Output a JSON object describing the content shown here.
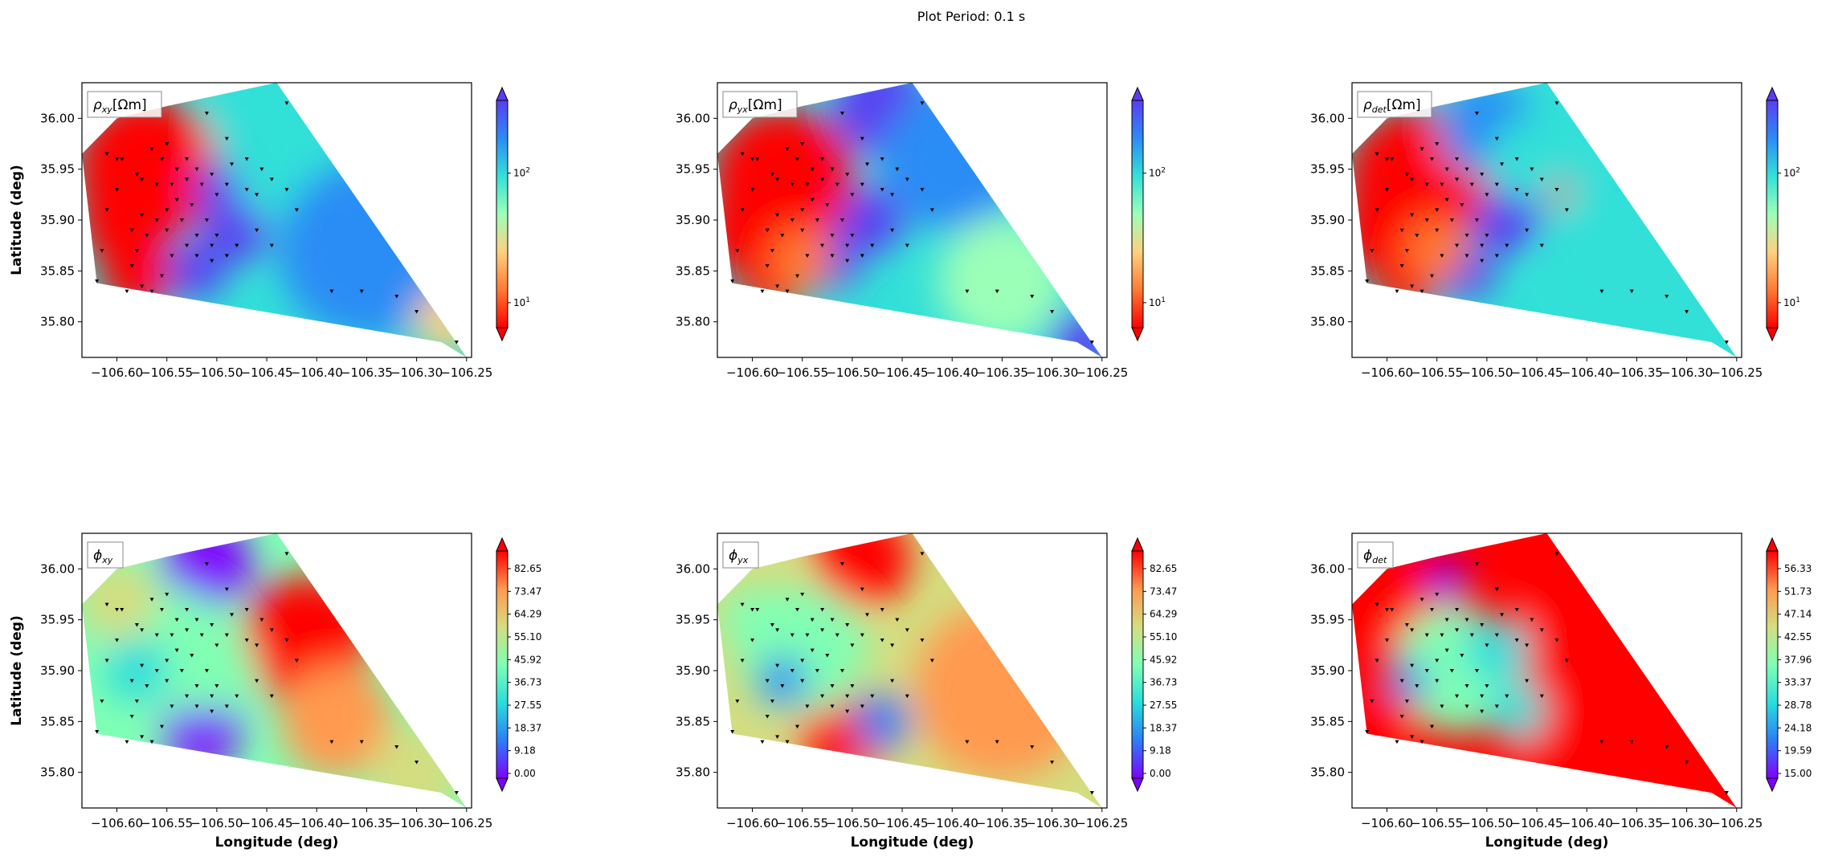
{
  "suptitle": "Plot Period: 0.1 s",
  "axis_labels": {
    "ylabel": "Latitude (deg)",
    "xlabel": "Longitude (deg)"
  },
  "x_ticks": [
    "−106.60",
    "−106.55",
    "−106.50",
    "−106.45",
    "−106.40",
    "−106.35",
    "−106.30",
    "−106.25"
  ],
  "y_ticks": [
    "36.00",
    "35.95",
    "35.90",
    "35.85",
    "35.80"
  ],
  "chart_data": [
    {
      "type": "heatmap",
      "label_sym": "ρ",
      "label_sub": "xy",
      "label_unit": "[Ωm]",
      "colorbar": {
        "scale": "log",
        "ticks": [
          {
            "base": "10",
            "exp": "1",
            "frac": 0.11
          },
          {
            "base": "10",
            "exp": "2",
            "frac": 0.68
          }
        ],
        "extend": "both",
        "colors": [
          "#ff0000",
          "#ff7a33",
          "#ffd080",
          "#9cffb8",
          "#33e0d8",
          "#2b8cf5",
          "#5a3df2"
        ]
      },
      "xlim": [
        -106.635,
        -106.245
      ],
      "ylim": [
        35.765,
        36.035
      ]
    },
    {
      "type": "heatmap",
      "label_sym": "ρ",
      "label_sub": "yx",
      "label_unit": "[Ωm]",
      "colorbar": {
        "scale": "log",
        "ticks": [
          {
            "base": "10",
            "exp": "1",
            "frac": 0.11
          },
          {
            "base": "10",
            "exp": "2",
            "frac": 0.68
          }
        ],
        "extend": "both",
        "colors": [
          "#ff0000",
          "#ff7a33",
          "#ffd080",
          "#9cffb8",
          "#33e0d8",
          "#2b8cf5",
          "#5a3df2"
        ]
      },
      "xlim": [
        -106.635,
        -106.245
      ],
      "ylim": [
        35.765,
        36.035
      ]
    },
    {
      "type": "heatmap",
      "label_sym": "ρ",
      "label_sub": "det",
      "label_unit": "[Ωm]",
      "colorbar": {
        "scale": "log",
        "ticks": [
          {
            "base": "10",
            "exp": "1",
            "frac": 0.11
          },
          {
            "base": "10",
            "exp": "2",
            "frac": 0.68
          }
        ],
        "extend": "both",
        "colors": [
          "#ff0000",
          "#ff7a33",
          "#ffd080",
          "#9cffb8",
          "#33e0d8",
          "#2b8cf5",
          "#5a3df2"
        ]
      },
      "xlim": [
        -106.635,
        -106.245
      ],
      "ylim": [
        35.765,
        36.035
      ]
    },
    {
      "type": "heatmap",
      "label_sym": "ϕ",
      "label_sub": "xy",
      "label_unit": "",
      "colorbar": {
        "scale": "linear",
        "ticks": [
          "0.00",
          "9.18",
          "18.37",
          "27.55",
          "36.73",
          "45.92",
          "55.10",
          "64.29",
          "73.47",
          "82.65"
        ],
        "extend": "both",
        "colors": [
          "#7f00ff",
          "#2c7ef7",
          "#2adddd",
          "#80ffb4",
          "#d4dd80",
          "#ff9a50",
          "#ff0000"
        ]
      },
      "xlim": [
        -106.635,
        -106.245
      ],
      "ylim": [
        35.765,
        36.035
      ]
    },
    {
      "type": "heatmap",
      "label_sym": "ϕ",
      "label_sub": "yx",
      "label_unit": "",
      "colorbar": {
        "scale": "linear",
        "ticks": [
          "0.00",
          "9.18",
          "18.37",
          "27.55",
          "36.73",
          "45.92",
          "55.10",
          "64.29",
          "73.47",
          "82.65"
        ],
        "extend": "both",
        "colors": [
          "#7f00ff",
          "#2c7ef7",
          "#2adddd",
          "#80ffb4",
          "#d4dd80",
          "#ff9a50",
          "#ff0000"
        ]
      },
      "xlim": [
        -106.635,
        -106.245
      ],
      "ylim": [
        35.765,
        36.035
      ]
    },
    {
      "type": "heatmap",
      "label_sym": "ϕ",
      "label_sub": "det",
      "label_unit": "",
      "colorbar": {
        "scale": "linear",
        "ticks": [
          "15.00",
          "19.59",
          "24.18",
          "28.78",
          "33.37",
          "37.96",
          "42.55",
          "47.14",
          "51.73",
          "56.33"
        ],
        "extend": "both",
        "colors": [
          "#7f00ff",
          "#2c7ef7",
          "#2adddd",
          "#80ffb4",
          "#d4dd80",
          "#ff9a50",
          "#ff0000"
        ]
      },
      "xlim": [
        -106.635,
        -106.245
      ],
      "ylim": [
        35.765,
        36.035
      ]
    }
  ],
  "stations": [
    [
      -106.61,
      35.965
    ],
    [
      -106.6,
      35.96
    ],
    [
      -106.595,
      35.96
    ],
    [
      -106.6,
      35.93
    ],
    [
      -106.61,
      35.91
    ],
    [
      -106.615,
      35.87
    ],
    [
      -106.62,
      35.84
    ],
    [
      -106.59,
      35.83
    ],
    [
      -106.575,
      35.835
    ],
    [
      -106.565,
      35.83
    ],
    [
      -106.58,
      35.87
    ],
    [
      -106.57,
      35.885
    ],
    [
      -106.585,
      35.89
    ],
    [
      -106.56,
      35.9
    ],
    [
      -106.575,
      35.905
    ],
    [
      -106.58,
      35.945
    ],
    [
      -106.565,
      35.97
    ],
    [
      -106.55,
      35.975
    ],
    [
      -106.555,
      35.96
    ],
    [
      -106.575,
      35.94
    ],
    [
      -106.56,
      35.935
    ],
    [
      -106.545,
      35.935
    ],
    [
      -106.54,
      35.92
    ],
    [
      -106.55,
      35.91
    ],
    [
      -106.535,
      35.9
    ],
    [
      -106.525,
      35.915
    ],
    [
      -106.51,
      35.9
    ],
    [
      -106.52,
      35.885
    ],
    [
      -106.5,
      35.885
    ],
    [
      -106.53,
      35.875
    ],
    [
      -106.545,
      35.865
    ],
    [
      -106.52,
      35.865
    ],
    [
      -106.505,
      35.86
    ],
    [
      -106.49,
      35.865
    ],
    [
      -106.48,
      35.875
    ],
    [
      -106.46,
      35.89
    ],
    [
      -106.47,
      35.93
    ],
    [
      -106.49,
      35.935
    ],
    [
      -106.505,
      35.945
    ],
    [
      -106.485,
      35.955
    ],
    [
      -106.47,
      35.96
    ],
    [
      -106.455,
      35.95
    ],
    [
      -106.46,
      35.925
    ],
    [
      -106.445,
      35.94
    ],
    [
      -106.43,
      35.93
    ],
    [
      -106.42,
      35.91
    ],
    [
      -106.445,
      35.875
    ],
    [
      -106.49,
      35.98
    ],
    [
      -106.51,
      36.005
    ],
    [
      -106.54,
      35.95
    ],
    [
      -106.53,
      35.94
    ],
    [
      -106.515,
      35.935
    ],
    [
      -106.5,
      35.925
    ],
    [
      -106.52,
      35.95
    ],
    [
      -106.53,
      35.96
    ],
    [
      -106.55,
      35.89
    ],
    [
      -106.505,
      35.875
    ],
    [
      -106.555,
      35.845
    ],
    [
      -106.585,
      35.855
    ],
    [
      -106.43,
      36.015
    ],
    [
      -106.385,
      35.83
    ],
    [
      -106.355,
      35.83
    ],
    [
      -106.32,
      35.825
    ],
    [
      -106.3,
      35.81
    ],
    [
      -106.26,
      35.78
    ]
  ]
}
